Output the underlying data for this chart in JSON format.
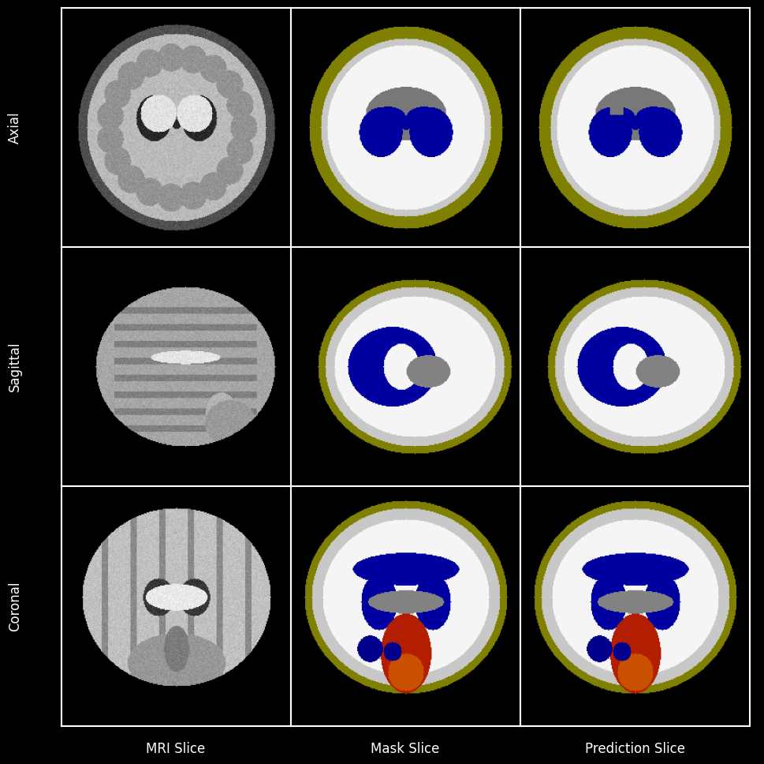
{
  "title": "",
  "row_labels": [
    "Axial",
    "Sagittal",
    "Coronal"
  ],
  "col_labels": [
    "MRI Slice",
    "Mask Slice",
    "Prediction Slice"
  ],
  "background_color": "#000000",
  "text_color": "#ffffff",
  "label_fontsize": 12,
  "grid_line_color": "#ffffff",
  "seg_colors": {
    "background": [
      0,
      0,
      0
    ],
    "csf": [
      80,
      80,
      80
    ],
    "gm_outer": [
      189,
      183,
      107
    ],
    "white_matter": [
      220,
      220,
      220
    ],
    "cortex": [
      255,
      255,
      255
    ],
    "ventricles": [
      0,
      0,
      139
    ],
    "subcortical": [
      128,
      128,
      128
    ],
    "cerebellum_red": [
      200,
      50,
      0
    ],
    "cerebellum_orange": [
      220,
      100,
      30
    ]
  }
}
